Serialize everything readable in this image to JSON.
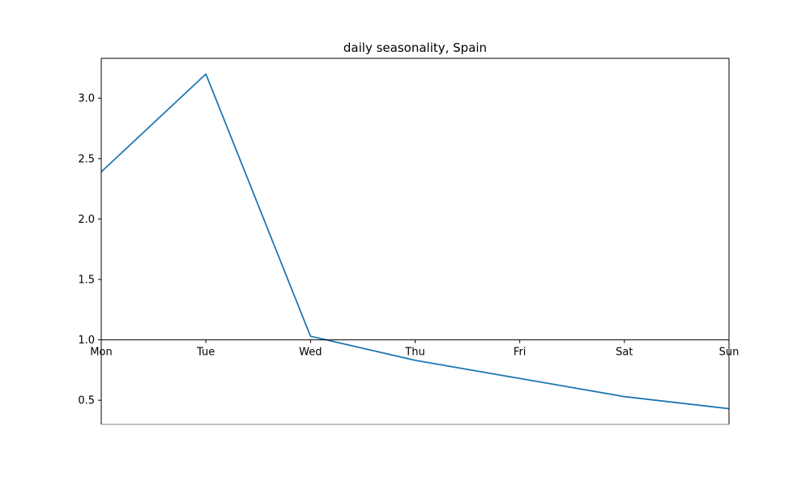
{
  "chart_data": {
    "type": "line",
    "title": "daily seasonality, Spain",
    "xlabel": "",
    "ylabel": "",
    "categories": [
      "Mon",
      "Tue",
      "Wed",
      "Thu",
      "Fri",
      "Sat",
      "Sun"
    ],
    "series": [
      {
        "values": [
          2.39,
          3.2,
          1.03,
          0.83,
          0.68,
          0.53,
          0.43
        ],
        "color": "#1f77b4"
      }
    ],
    "ylim": [
      0.3,
      3.33
    ],
    "yticks": [
      0.5,
      1.0,
      1.5,
      2.0,
      2.5,
      3.0
    ],
    "ytick_labels": [
      "0.5",
      "1.0",
      "1.5",
      "2.0",
      "2.5",
      "3.0"
    ],
    "x_axis_at": 1.0,
    "grid": false,
    "legend": "none"
  }
}
